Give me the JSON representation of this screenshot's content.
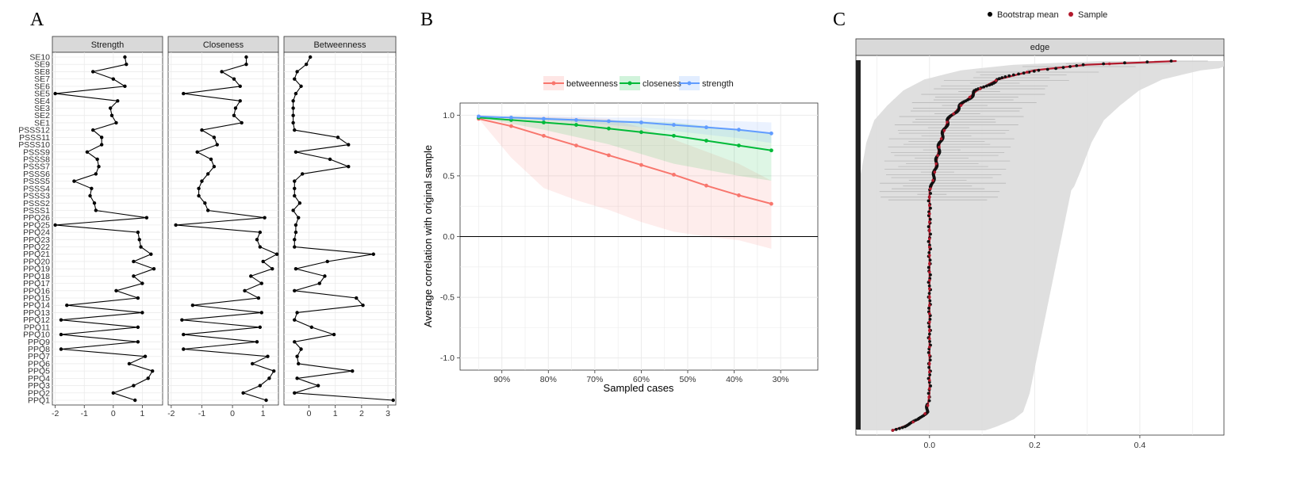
{
  "panel_labels": {
    "a": "A",
    "b": "B",
    "c": "C"
  },
  "colors": {
    "betweenness": "#f8766d",
    "closeness": "#00ba38",
    "strength": "#619cff",
    "sample": "#b2182b",
    "strip_fill": "#d9d9d9",
    "grid": "#ebebeb",
    "ci_band": "#d0d0d0"
  },
  "chart_data": [
    {
      "type": "line",
      "panel": "A",
      "title": "",
      "facets": [
        "Strength",
        "Closeness",
        "Betweenness"
      ],
      "nodes": [
        "SE10",
        "SE9",
        "SE8",
        "SE7",
        "SE6",
        "SE5",
        "SE4",
        "SE3",
        "SE2",
        "SE1",
        "PSSS12",
        "PSSS11",
        "PSSS10",
        "PSSS9",
        "PSSS8",
        "PSSS7",
        "PSSS6",
        "PSSS5",
        "PSSS4",
        "PSSS3",
        "PSSS2",
        "PSSS1",
        "PPQ26",
        "PPQ25",
        "PPQ24",
        "PPQ23",
        "PPQ22",
        "PPQ21",
        "PPQ20",
        "PPQ19",
        "PPQ18",
        "PPQ17",
        "PPQ16",
        "PPQ15",
        "PPQ14",
        "PPQ13",
        "PPQ12",
        "PPQ11",
        "PPQ10",
        "PPQ9",
        "PPQ8",
        "PPQ7",
        "PPQ6",
        "PPQ5",
        "PPQ4",
        "PPQ3",
        "PPQ2",
        "PPQ1"
      ],
      "series": [
        {
          "name": "Strength",
          "xlim": [
            -2.1,
            1.7
          ],
          "ticks": [
            -2,
            -1,
            0,
            1
          ],
          "values": [
            0.4,
            0.45,
            -0.7,
            0.0,
            0.4,
            -2.0,
            0.15,
            -0.1,
            -0.05,
            0.1,
            -0.7,
            -0.4,
            -0.4,
            -0.9,
            -0.55,
            -0.5,
            -0.6,
            -1.35,
            -0.75,
            -0.8,
            -0.65,
            -0.6,
            1.15,
            -2.0,
            0.85,
            0.9,
            0.95,
            1.3,
            0.7,
            1.4,
            0.7,
            1.0,
            0.1,
            0.85,
            -1.6,
            1.0,
            -1.8,
            0.85,
            -1.8,
            0.85,
            -1.8,
            1.1,
            0.55,
            1.35,
            1.2,
            0.7,
            0.0,
            0.75
          ]
        },
        {
          "name": "Closeness",
          "xlim": [
            -2.1,
            1.5
          ],
          "ticks": [
            -2,
            -1,
            0,
            1
          ],
          "values": [
            0.45,
            0.45,
            -0.35,
            0.05,
            0.25,
            -1.6,
            0.25,
            0.1,
            0.05,
            0.3,
            -1.0,
            -0.6,
            -0.5,
            -1.15,
            -0.7,
            -0.6,
            -0.8,
            -1.0,
            -1.1,
            -1.1,
            -0.9,
            -0.8,
            1.05,
            -1.85,
            0.9,
            0.8,
            0.9,
            1.45,
            1.0,
            1.3,
            0.6,
            0.95,
            0.4,
            0.85,
            -1.3,
            0.95,
            -1.65,
            0.9,
            -1.6,
            0.8,
            -1.6,
            1.15,
            0.65,
            1.35,
            1.2,
            0.9,
            0.35,
            1.1
          ]
        },
        {
          "name": "Betweenness",
          "xlim": [
            -0.95,
            3.3
          ],
          "ticks": [
            0,
            1,
            2,
            3
          ],
          "values": [
            0.05,
            -0.1,
            -0.45,
            -0.55,
            -0.3,
            -0.5,
            -0.6,
            -0.6,
            -0.6,
            -0.6,
            -0.55,
            1.1,
            1.5,
            -0.5,
            0.8,
            1.5,
            -0.25,
            -0.55,
            -0.55,
            -0.55,
            -0.35,
            -0.6,
            -0.4,
            -0.5,
            -0.5,
            -0.55,
            -0.55,
            2.45,
            0.7,
            -0.5,
            0.6,
            0.4,
            -0.55,
            1.8,
            2.05,
            -0.45,
            -0.55,
            0.1,
            0.95,
            -0.55,
            -0.3,
            -0.45,
            -0.4,
            1.65,
            -0.45,
            0.35,
            -0.55,
            3.2
          ]
        }
      ]
    },
    {
      "type": "line",
      "panel": "B",
      "title": "",
      "xlabel": "Sampled cases",
      "ylabel": "Average correlation with original sample",
      "x_tick_labels": [
        "90%",
        "80%",
        "70%",
        "60%",
        "50%",
        "40%",
        "30%"
      ],
      "x": [
        0.95,
        0.88,
        0.81,
        0.74,
        0.67,
        0.6,
        0.53,
        0.46,
        0.39,
        0.32,
        0.25
      ],
      "xlim": [
        0.99,
        0.22
      ],
      "ylim": [
        -1.1,
        1.1
      ],
      "y_ticks": [
        -1.0,
        -0.5,
        0.0,
        0.5,
        1.0
      ],
      "y_tick_labels": [
        "-1.0",
        "-0.5",
        "0.0",
        "0.5",
        "1.0"
      ],
      "legend": [
        "betweenness",
        "closeness",
        "strength"
      ],
      "legend_position": "top",
      "series": [
        {
          "name": "betweenness",
          "values": [
            0.97,
            0.91,
            0.83,
            0.75,
            0.67,
            0.59,
            0.51,
            0.42,
            0.34,
            0.27,
            null
          ],
          "lower": [
            0.97,
            0.65,
            0.4,
            0.3,
            0.22,
            0.12,
            0.04,
            0.0,
            -0.03,
            -0.1,
            null
          ],
          "upper": [
            0.97,
            0.99,
            0.99,
            0.98,
            0.97,
            0.9,
            0.8,
            0.7,
            0.6,
            0.46,
            null
          ]
        },
        {
          "name": "closeness",
          "values": [
            0.98,
            0.96,
            0.94,
            0.92,
            0.89,
            0.86,
            0.83,
            0.79,
            0.75,
            0.71,
            null
          ],
          "lower": [
            0.98,
            0.93,
            0.88,
            0.82,
            0.76,
            0.68,
            0.6,
            0.55,
            0.5,
            0.46,
            null
          ],
          "upper": [
            0.99,
            0.99,
            0.98,
            0.97,
            0.96,
            0.95,
            0.94,
            0.91,
            0.88,
            0.85,
            null
          ]
        },
        {
          "name": "strength",
          "values": [
            0.99,
            0.98,
            0.97,
            0.96,
            0.95,
            0.94,
            0.92,
            0.9,
            0.88,
            0.85,
            null
          ],
          "lower": [
            0.99,
            0.98,
            0.96,
            0.94,
            0.92,
            0.9,
            0.87,
            0.84,
            0.81,
            0.77,
            null
          ],
          "upper": [
            0.99,
            0.99,
            0.99,
            0.99,
            0.98,
            0.98,
            0.97,
            0.96,
            0.95,
            0.94,
            null
          ]
        }
      ]
    },
    {
      "type": "scatter",
      "panel": "C",
      "title": "",
      "facet": "edge",
      "xlim": [
        -0.14,
        0.56
      ],
      "x_ticks": [
        0.0,
        0.2,
        0.4
      ],
      "x_tick_labels": [
        "0.0",
        "0.2",
        "0.4"
      ],
      "legend": [
        "Bootstrap mean",
        "Sample"
      ],
      "legend_position": "top",
      "n_edges": 400,
      "ci_halfwidth": 0.32,
      "quantiles": [
        {
          "q": 0.0,
          "value": -0.07
        },
        {
          "q": 0.01,
          "value": -0.05
        },
        {
          "q": 0.03,
          "value": -0.02
        },
        {
          "q": 0.05,
          "value": -0.005
        },
        {
          "q": 0.1,
          "value": 0.0
        },
        {
          "q": 0.5,
          "value": 0.0
        },
        {
          "q": 0.65,
          "value": 0.0
        },
        {
          "q": 0.66,
          "value": 0.004
        },
        {
          "q": 0.7,
          "value": 0.01
        },
        {
          "q": 0.78,
          "value": 0.02
        },
        {
          "q": 0.84,
          "value": 0.035
        },
        {
          "q": 0.88,
          "value": 0.06
        },
        {
          "q": 0.92,
          "value": 0.09
        },
        {
          "q": 0.95,
          "value": 0.13
        },
        {
          "q": 0.975,
          "value": 0.2
        },
        {
          "q": 0.99,
          "value": 0.3
        },
        {
          "q": 1.0,
          "value": 0.47
        }
      ]
    }
  ]
}
